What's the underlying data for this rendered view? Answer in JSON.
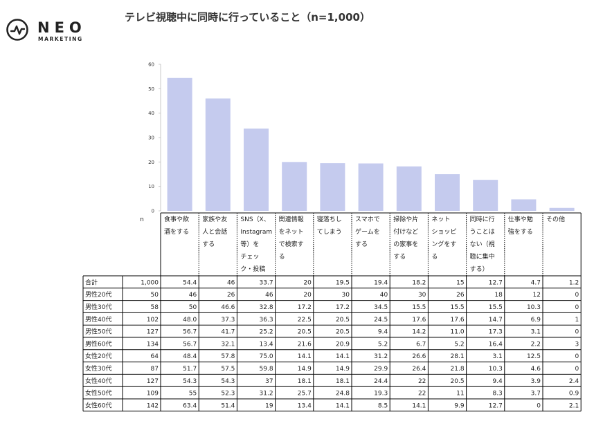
{
  "brand": {
    "name": "NEO",
    "sub": "MARKETING"
  },
  "title": "テレビ視聴中に同時に行っていること（n=1,000）",
  "chart_data": {
    "type": "bar",
    "categories": [
      [
        "食事や飲",
        "酒をする"
      ],
      [
        "家族や友",
        "人と会話",
        "する"
      ],
      [
        "SNS（X、",
        "Instagram",
        "等）を",
        "チェッ",
        "ク・投稿"
      ],
      [
        "関連情報",
        "をネット",
        "で検索す",
        "る"
      ],
      [
        "寝落ちし",
        "てしまう"
      ],
      [
        "スマホで",
        "ゲームを",
        "する"
      ],
      [
        "掃除や片",
        "付けなど",
        "の家事を",
        "する"
      ],
      [
        "ネット",
        "ショッピ",
        "ングをす",
        "る"
      ],
      [
        "同時に行",
        "うことは",
        "ない（視",
        "聴に集中",
        "する）"
      ],
      [
        "仕事や勉",
        "強をする"
      ],
      [
        "その他"
      ]
    ],
    "values": [
      54.4,
      46,
      33.7,
      20,
      19.5,
      19.4,
      18.2,
      15,
      12.7,
      4.7,
      1.2
    ],
    "ylim": [
      0,
      60
    ],
    "yticks": [
      "0",
      "10",
      "20",
      "30",
      "40",
      "50",
      "60"
    ],
    "bar_color": "#c5cbee",
    "n_header": "n",
    "rows": [
      {
        "label": "合計",
        "n": "1,000",
        "cells": [
          "54.4",
          "46",
          "33.7",
          "20",
          "19.5",
          "19.4",
          "18.2",
          "15",
          "12.7",
          "4.7",
          "1.2"
        ]
      },
      {
        "label": "男性20代",
        "n": "50",
        "cells": [
          "46",
          "26",
          "46",
          "20",
          "30",
          "40",
          "30",
          "26",
          "18",
          "12",
          "0"
        ]
      },
      {
        "label": "男性30代",
        "n": "58",
        "cells": [
          "50",
          "46.6",
          "32.8",
          "17.2",
          "17.2",
          "34.5",
          "15.5",
          "15.5",
          "15.5",
          "10.3",
          "0"
        ]
      },
      {
        "label": "男性40代",
        "n": "102",
        "cells": [
          "48.0",
          "37.3",
          "36.3",
          "22.5",
          "20.5",
          "24.5",
          "17.6",
          "17.6",
          "14.7",
          "6.9",
          "1"
        ]
      },
      {
        "label": "男性50代",
        "n": "127",
        "cells": [
          "56.7",
          "41.7",
          "25.2",
          "20.5",
          "20.5",
          "9.4",
          "14.2",
          "11.0",
          "17.3",
          "3.1",
          "0"
        ]
      },
      {
        "label": "男性60代",
        "n": "134",
        "cells": [
          "56.7",
          "32.1",
          "13.4",
          "21.6",
          "20.9",
          "5.2",
          "6.7",
          "5.2",
          "16.4",
          "2.2",
          "3"
        ]
      },
      {
        "label": "女性20代",
        "n": "64",
        "cells": [
          "48.4",
          "57.8",
          "75.0",
          "14.1",
          "14.1",
          "31.2",
          "26.6",
          "28.1",
          "3.1",
          "12.5",
          "0"
        ]
      },
      {
        "label": "女性30代",
        "n": "87",
        "cells": [
          "51.7",
          "57.5",
          "59.8",
          "14.9",
          "14.9",
          "29.9",
          "26.4",
          "21.8",
          "10.3",
          "4.6",
          "0"
        ]
      },
      {
        "label": "女性40代",
        "n": "127",
        "cells": [
          "54.3",
          "54.3",
          "37",
          "18.1",
          "18.1",
          "24.4",
          "22",
          "20.5",
          "9.4",
          "3.9",
          "2.4"
        ]
      },
      {
        "label": "女性50代",
        "n": "109",
        "cells": [
          "55",
          "52.3",
          "31.2",
          "25.7",
          "24.8",
          "19.3",
          "22",
          "11",
          "8.3",
          "3.7",
          "0.9"
        ]
      },
      {
        "label": "女性60代",
        "n": "142",
        "cells": [
          "63.4",
          "51.4",
          "19",
          "13.4",
          "14.1",
          "8.5",
          "14.1",
          "9.9",
          "12.7",
          "0",
          "2.1"
        ]
      }
    ]
  }
}
